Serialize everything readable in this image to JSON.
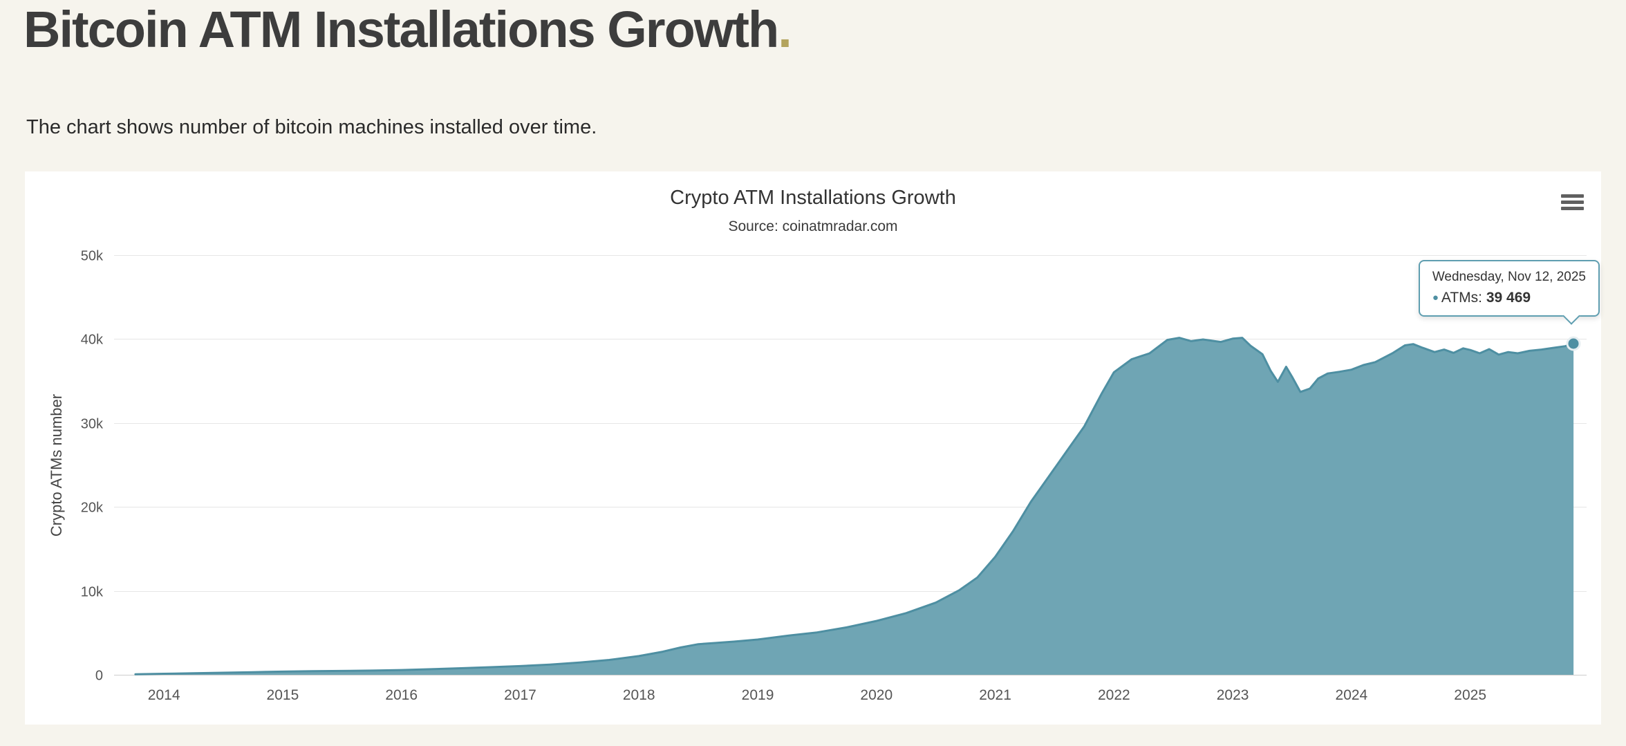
{
  "page": {
    "title": "Bitcoin ATM Installations Growth",
    "title_dot": ".",
    "title_dot_color": "#b3a35c",
    "description": "The chart shows number of bitcoin machines installed over time.",
    "background_color": "#f6f4ed"
  },
  "chart": {
    "title": "Crypto ATM Installations Growth",
    "subtitle": "Source: coinatmradar.com",
    "y_axis_title": "Crypto ATMs number",
    "menu_icon": "hamburger-icon"
  },
  "tooltip": {
    "date": "Wednesday, Nov 12, 2025",
    "bullet": "●",
    "bullet_color": "#4e8fa2",
    "series_label": "ATMs:",
    "value": "39 469",
    "border_color": "#5f9eb0"
  },
  "chart_data": {
    "type": "area",
    "title": "Crypto ATM Installations Growth",
    "subtitle": "Source: coinatmradar.com",
    "xlabel": "",
    "ylabel": "Crypto ATMs number",
    "xlim": [
      2013.58,
      2025.98
    ],
    "ylim": [
      0,
      50000
    ],
    "yticks": [
      0,
      10000,
      20000,
      30000,
      40000,
      50000
    ],
    "ytick_labels": [
      "0",
      "10k",
      "20k",
      "30k",
      "40k",
      "50k"
    ],
    "xticks": [
      2014,
      2015,
      2016,
      2017,
      2018,
      2019,
      2020,
      2021,
      2022,
      2023,
      2024,
      2025
    ],
    "xtick_labels": [
      "2014",
      "2015",
      "2016",
      "2017",
      "2018",
      "2019",
      "2020",
      "2021",
      "2022",
      "2023",
      "2024",
      "2025"
    ],
    "grid": true,
    "grid_color": "#e6e6e6",
    "axis_line_color": "#cccccc",
    "tick_label_color": "#555555",
    "legend": false,
    "series": [
      {
        "name": "ATMs",
        "line_color": "#4e8fa2",
        "fill_color": "#6fa5b4",
        "points": [
          [
            2013.76,
            60
          ],
          [
            2014.0,
            120
          ],
          [
            2014.25,
            185
          ],
          [
            2014.5,
            245
          ],
          [
            2014.75,
            310
          ],
          [
            2015.0,
            375
          ],
          [
            2015.25,
            425
          ],
          [
            2015.5,
            465
          ],
          [
            2015.75,
            505
          ],
          [
            2016.0,
            565
          ],
          [
            2016.25,
            665
          ],
          [
            2016.5,
            785
          ],
          [
            2016.75,
            905
          ],
          [
            2017.0,
            1035
          ],
          [
            2017.25,
            1210
          ],
          [
            2017.5,
            1460
          ],
          [
            2017.75,
            1770
          ],
          [
            2018.0,
            2230
          ],
          [
            2018.2,
            2750
          ],
          [
            2018.35,
            3250
          ],
          [
            2018.5,
            3650
          ],
          [
            2018.65,
            3800
          ],
          [
            2018.8,
            3950
          ],
          [
            2019.0,
            4200
          ],
          [
            2019.25,
            4650
          ],
          [
            2019.5,
            5050
          ],
          [
            2019.75,
            5650
          ],
          [
            2020.0,
            6420
          ],
          [
            2020.25,
            7350
          ],
          [
            2020.5,
            8600
          ],
          [
            2020.7,
            10100
          ],
          [
            2020.85,
            11600
          ],
          [
            2021.0,
            14050
          ],
          [
            2021.15,
            17100
          ],
          [
            2021.3,
            20600
          ],
          [
            2021.45,
            23600
          ],
          [
            2021.6,
            26600
          ],
          [
            2021.75,
            29600
          ],
          [
            2021.9,
            33600
          ],
          [
            2022.0,
            36050
          ],
          [
            2022.15,
            37600
          ],
          [
            2022.3,
            38300
          ],
          [
            2022.45,
            39900
          ],
          [
            2022.55,
            40150
          ],
          [
            2022.65,
            39750
          ],
          [
            2022.75,
            39950
          ],
          [
            2022.9,
            39650
          ],
          [
            2023.0,
            40050
          ],
          [
            2023.08,
            40150
          ],
          [
            2023.15,
            39200
          ],
          [
            2023.25,
            38200
          ],
          [
            2023.32,
            36200
          ],
          [
            2023.38,
            34900
          ],
          [
            2023.45,
            36700
          ],
          [
            2023.5,
            35500
          ],
          [
            2023.57,
            33700
          ],
          [
            2023.65,
            34100
          ],
          [
            2023.72,
            35300
          ],
          [
            2023.8,
            35900
          ],
          [
            2023.9,
            36100
          ],
          [
            2024.0,
            36350
          ],
          [
            2024.1,
            36900
          ],
          [
            2024.2,
            37250
          ],
          [
            2024.35,
            38350
          ],
          [
            2024.45,
            39250
          ],
          [
            2024.52,
            39400
          ],
          [
            2024.6,
            38950
          ],
          [
            2024.7,
            38450
          ],
          [
            2024.78,
            38750
          ],
          [
            2024.86,
            38350
          ],
          [
            2024.94,
            38900
          ],
          [
            2025.0,
            38700
          ],
          [
            2025.08,
            38300
          ],
          [
            2025.16,
            38800
          ],
          [
            2025.24,
            38150
          ],
          [
            2025.32,
            38450
          ],
          [
            2025.4,
            38300
          ],
          [
            2025.5,
            38600
          ],
          [
            2025.6,
            38750
          ],
          [
            2025.7,
            38950
          ],
          [
            2025.8,
            39150
          ],
          [
            2025.87,
            39469
          ]
        ]
      }
    ],
    "highlighted_point": {
      "x": 2025.87,
      "y": 39469,
      "date_label": "Wednesday, Nov 12, 2025",
      "value_text": "39 469"
    }
  }
}
